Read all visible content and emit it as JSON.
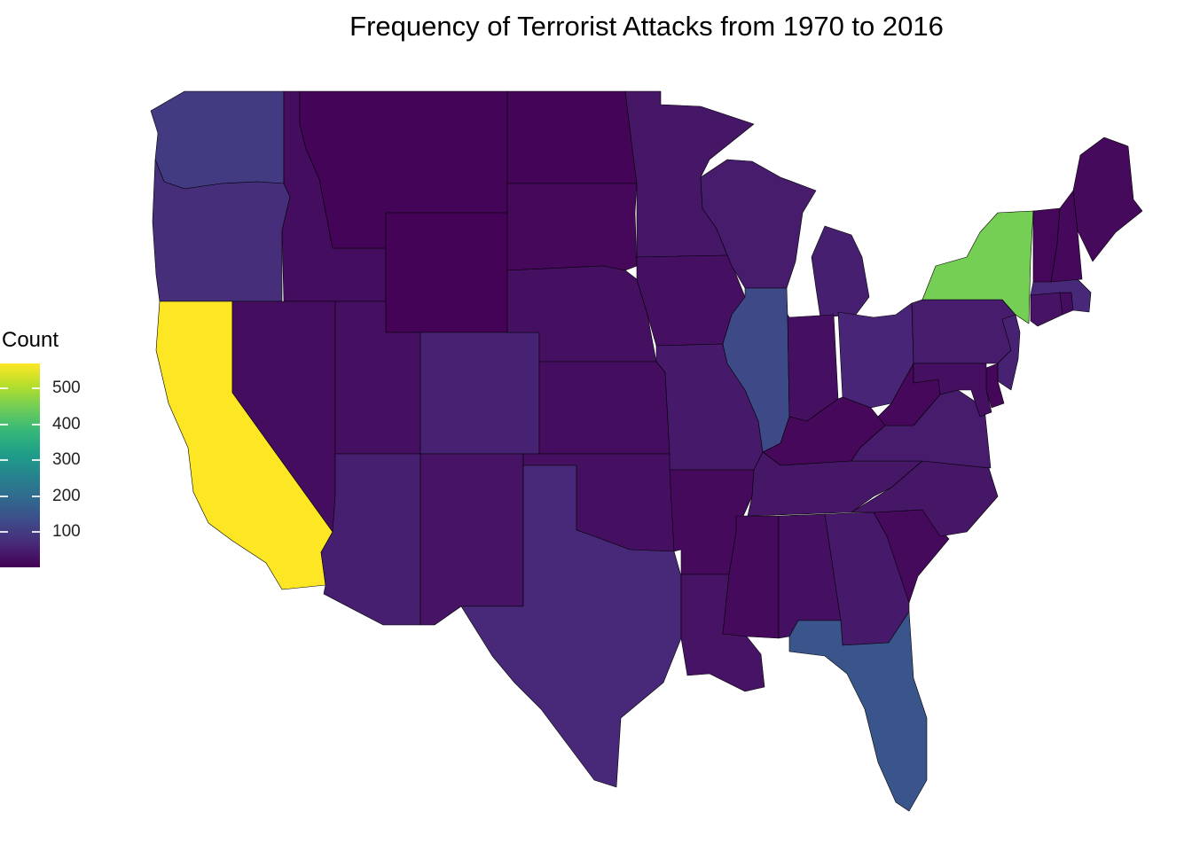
{
  "title": "Frequency of Terrorist Attacks from 1970 to 2016",
  "legend": {
    "title": "Count",
    "min": 1,
    "max": 570,
    "ticks": [
      100,
      200,
      300,
      400,
      500
    ],
    "tick_labels": [
      "100",
      "200",
      "300",
      "400",
      "500"
    ],
    "palette": [
      "#440154",
      "#482878",
      "#3E4A89",
      "#31688E",
      "#26828E",
      "#1F9E89",
      "#35B779",
      "#6DCD59",
      "#B4DE2C",
      "#FDE725"
    ]
  },
  "chart_data": {
    "type": "choropleth",
    "value_label": "Count",
    "states": [
      {
        "state": "WA",
        "value": 100
      },
      {
        "state": "OR",
        "value": 75
      },
      {
        "state": "CA",
        "value": 570
      },
      {
        "state": "ID",
        "value": 20
      },
      {
        "state": "NV",
        "value": 20
      },
      {
        "state": "MT",
        "value": 8
      },
      {
        "state": "WY",
        "value": 5
      },
      {
        "state": "UT",
        "value": 25
      },
      {
        "state": "AZ",
        "value": 50
      },
      {
        "state": "CO",
        "value": 55
      },
      {
        "state": "NM",
        "value": 30
      },
      {
        "state": "ND",
        "value": 8
      },
      {
        "state": "SD",
        "value": 12
      },
      {
        "state": "NE",
        "value": 25
      },
      {
        "state": "KS",
        "value": 20
      },
      {
        "state": "OK",
        "value": 25
      },
      {
        "state": "TX",
        "value": 65
      },
      {
        "state": "MN",
        "value": 35
      },
      {
        "state": "IA",
        "value": 25
      },
      {
        "state": "MO",
        "value": 40
      },
      {
        "state": "AR",
        "value": 15
      },
      {
        "state": "LA",
        "value": 30
      },
      {
        "state": "WI",
        "value": 45
      },
      {
        "state": "IL",
        "value": 125
      },
      {
        "state": "MI",
        "value": 50
      },
      {
        "state": "IN",
        "value": 25
      },
      {
        "state": "OH",
        "value": 60
      },
      {
        "state": "KY",
        "value": 12
      },
      {
        "state": "TN",
        "value": 35
      },
      {
        "state": "MS",
        "value": 15
      },
      {
        "state": "AL",
        "value": 25
      },
      {
        "state": "GA",
        "value": 40
      },
      {
        "state": "FL",
        "value": 150
      },
      {
        "state": "SC",
        "value": 15
      },
      {
        "state": "NC",
        "value": 35
      },
      {
        "state": "VA",
        "value": 45
      },
      {
        "state": "WV",
        "value": 12
      },
      {
        "state": "PA",
        "value": 45
      },
      {
        "state": "NY",
        "value": 450
      },
      {
        "state": "NJ",
        "value": 55
      },
      {
        "state": "DE",
        "value": 10
      },
      {
        "state": "MD",
        "value": 25
      },
      {
        "state": "CT",
        "value": 30
      },
      {
        "state": "RI",
        "value": 20
      },
      {
        "state": "MA",
        "value": 65
      },
      {
        "state": "VT",
        "value": 10
      },
      {
        "state": "NH",
        "value": 12
      },
      {
        "state": "ME",
        "value": 15
      }
    ]
  }
}
